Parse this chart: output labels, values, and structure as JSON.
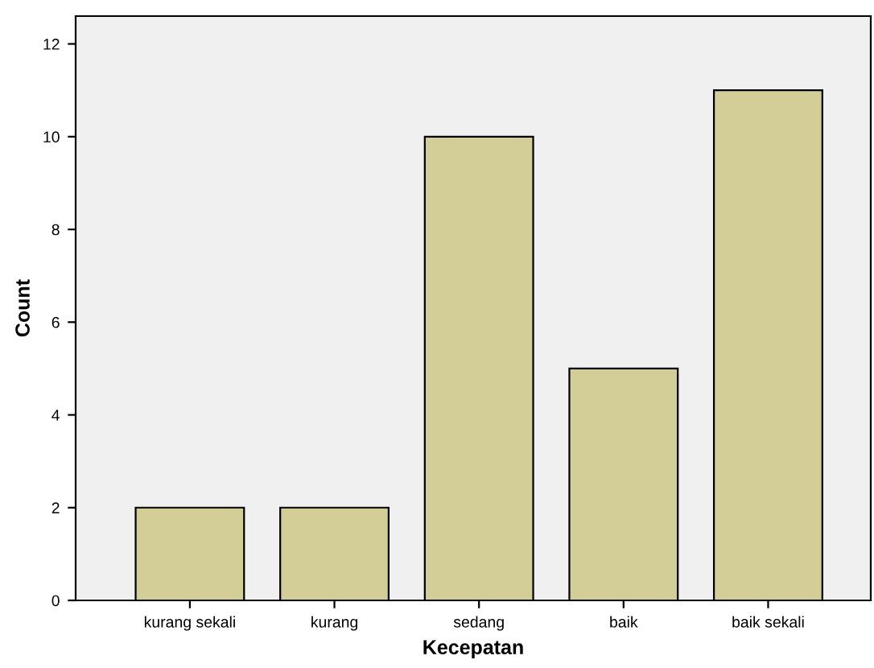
{
  "chart_data": {
    "type": "bar",
    "xlabel": "Kecepatan",
    "ylabel": "Count",
    "categories": [
      "kurang sekali",
      "kurang",
      "sedang",
      "baik",
      "baik sekali"
    ],
    "values": [
      2,
      2,
      10,
      5,
      11
    ],
    "color": "#d3ce97",
    "ylim": [
      0,
      12.6
    ],
    "yticks": [
      0,
      2,
      4,
      6,
      8,
      10,
      12
    ],
    "grid": false,
    "legend": false
  }
}
